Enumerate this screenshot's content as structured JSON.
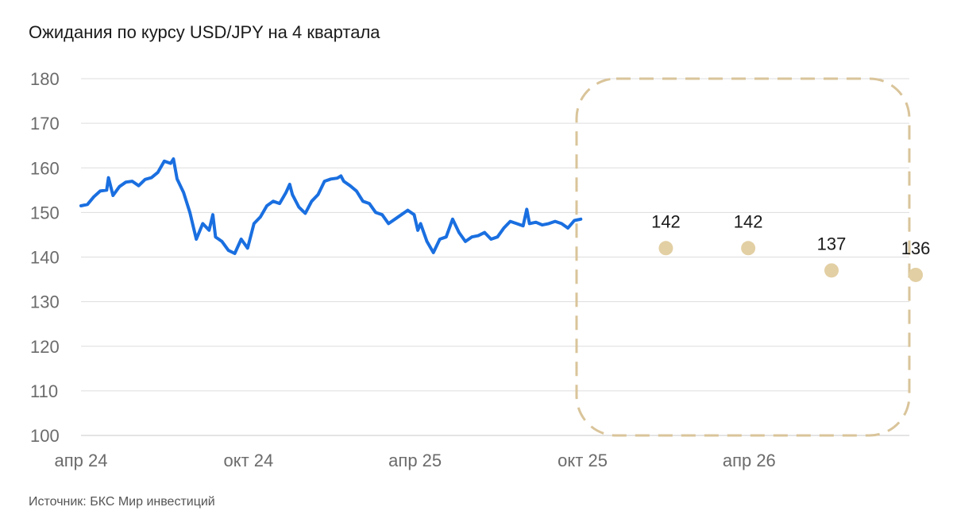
{
  "title": "Ожидания по курсу USD/JPY на 4 квартала",
  "source": "Источник: БКС Мир инвестиций",
  "colors": {
    "history": "#1a6fe0",
    "forecast": "#e2cfa3",
    "grid": "#dddddd",
    "box": "#d9c49a"
  },
  "chart_data": {
    "type": "line",
    "title": "Ожидания по курсу USD/JPY на 4 квартала",
    "ylim": [
      100,
      180
    ],
    "yticks": [
      100,
      110,
      120,
      130,
      140,
      150,
      160,
      170,
      180
    ],
    "xlim": [
      "2024-04-01",
      "2026-09-23"
    ],
    "xticks": [
      {
        "date": "2024-04-01",
        "label": "апр 24"
      },
      {
        "date": "2024-10-01",
        "label": "окт 24"
      },
      {
        "date": "2025-04-01",
        "label": "апр 25"
      },
      {
        "date": "2025-10-01",
        "label": "окт 25"
      },
      {
        "date": "2026-04-01",
        "label": "апр 26"
      }
    ],
    "grid": true,
    "series": [
      {
        "kind": "history",
        "points": [
          [
            "2024-04-01",
            151.5
          ],
          [
            "2024-04-08",
            151.8
          ],
          [
            "2024-04-15",
            153.5
          ],
          [
            "2024-04-22",
            154.8
          ],
          [
            "2024-04-29",
            155.0
          ],
          [
            "2024-05-01",
            157.8
          ],
          [
            "2024-05-06",
            153.8
          ],
          [
            "2024-05-13",
            155.8
          ],
          [
            "2024-05-20",
            156.8
          ],
          [
            "2024-05-27",
            157.0
          ],
          [
            "2024-06-03",
            156.0
          ],
          [
            "2024-06-10",
            157.4
          ],
          [
            "2024-06-17",
            157.8
          ],
          [
            "2024-06-24",
            159.0
          ],
          [
            "2024-07-01",
            161.5
          ],
          [
            "2024-07-08",
            161.0
          ],
          [
            "2024-07-11",
            162.0
          ],
          [
            "2024-07-15",
            157.5
          ],
          [
            "2024-07-22",
            154.5
          ],
          [
            "2024-07-29",
            150.0
          ],
          [
            "2024-08-02",
            146.5
          ],
          [
            "2024-08-05",
            144.0
          ],
          [
            "2024-08-12",
            147.5
          ],
          [
            "2024-08-19",
            146.0
          ],
          [
            "2024-08-23",
            149.5
          ],
          [
            "2024-08-26",
            144.5
          ],
          [
            "2024-09-02",
            143.5
          ],
          [
            "2024-09-09",
            141.5
          ],
          [
            "2024-09-16",
            140.8
          ],
          [
            "2024-09-23",
            144.0
          ],
          [
            "2024-09-30",
            142.0
          ],
          [
            "2024-10-07",
            147.5
          ],
          [
            "2024-10-14",
            149.0
          ],
          [
            "2024-10-21",
            151.5
          ],
          [
            "2024-10-28",
            152.5
          ],
          [
            "2024-11-04",
            152.0
          ],
          [
            "2024-11-11",
            154.5
          ],
          [
            "2024-11-15",
            156.3
          ],
          [
            "2024-11-18",
            154.0
          ],
          [
            "2024-11-25",
            151.2
          ],
          [
            "2024-12-02",
            149.8
          ],
          [
            "2024-12-09",
            152.5
          ],
          [
            "2024-12-16",
            154.0
          ],
          [
            "2024-12-23",
            157.0
          ],
          [
            "2024-12-30",
            157.5
          ],
          [
            "2025-01-06",
            157.7
          ],
          [
            "2025-01-10",
            158.2
          ],
          [
            "2025-01-13",
            157.0
          ],
          [
            "2025-01-20",
            156.0
          ],
          [
            "2025-01-27",
            154.8
          ],
          [
            "2025-02-03",
            152.5
          ],
          [
            "2025-02-10",
            152.0
          ],
          [
            "2025-02-17",
            150.0
          ],
          [
            "2025-02-24",
            149.5
          ],
          [
            "2025-03-03",
            147.5
          ],
          [
            "2025-03-10",
            148.5
          ],
          [
            "2025-03-17",
            149.5
          ],
          [
            "2025-03-24",
            150.5
          ],
          [
            "2025-03-31",
            149.5
          ],
          [
            "2025-04-04",
            146.0
          ],
          [
            "2025-04-07",
            147.5
          ],
          [
            "2025-04-14",
            143.5
          ],
          [
            "2025-04-21",
            141.0
          ],
          [
            "2025-04-28",
            144.0
          ],
          [
            "2025-05-05",
            144.5
          ],
          [
            "2025-05-12",
            148.5
          ],
          [
            "2025-05-19",
            145.5
          ],
          [
            "2025-05-26",
            143.5
          ],
          [
            "2025-06-02",
            144.5
          ],
          [
            "2025-06-09",
            144.8
          ],
          [
            "2025-06-16",
            145.5
          ],
          [
            "2025-06-23",
            144.0
          ],
          [
            "2025-06-30",
            144.5
          ],
          [
            "2025-07-07",
            146.5
          ],
          [
            "2025-07-14",
            148.0
          ],
          [
            "2025-07-21",
            147.5
          ],
          [
            "2025-07-28",
            147.0
          ],
          [
            "2025-08-01",
            150.7
          ],
          [
            "2025-08-04",
            147.5
          ],
          [
            "2025-08-11",
            147.8
          ],
          [
            "2025-08-18",
            147.2
          ],
          [
            "2025-08-25",
            147.5
          ],
          [
            "2025-09-01",
            148.0
          ],
          [
            "2025-09-08",
            147.5
          ],
          [
            "2025-09-15",
            146.5
          ],
          [
            "2025-09-22",
            148.2
          ],
          [
            "2025-09-29",
            148.5
          ]
        ]
      },
      {
        "kind": "forecast",
        "points": [
          {
            "x": "2025-12-31",
            "y": 142,
            "label": "142"
          },
          {
            "x": "2026-03-31",
            "y": 142,
            "label": "142"
          },
          {
            "x": "2026-06-30",
            "y": 137,
            "label": "137"
          },
          {
            "x": "2026-09-30",
            "y": 136,
            "label": "136"
          }
        ]
      }
    ]
  }
}
